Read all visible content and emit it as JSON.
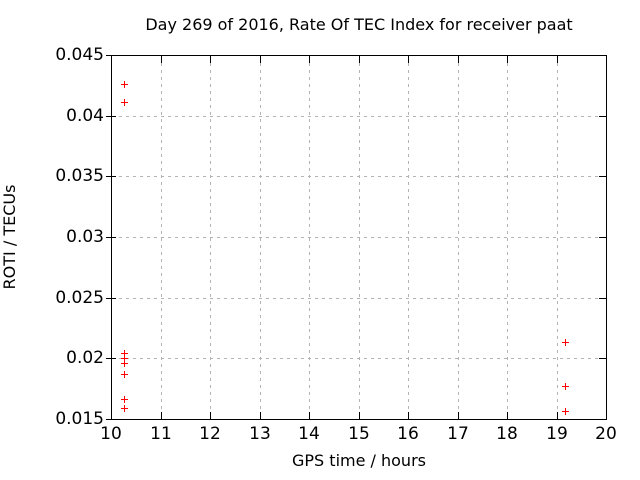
{
  "title": "Day 269 of 2016, Rate Of TEC Index for receiver paat",
  "colors": {
    "marker": "#ff0000",
    "grid": "#b3b3b3",
    "axis": "#000000",
    "text": "#000000",
    "background": "#ffffff"
  },
  "chart_data": {
    "type": "scatter",
    "title": "Day 269 of 2016, Rate Of TEC Index for receiver paat",
    "xlabel": "GPS time / hours",
    "ylabel": "ROTI / TECUs",
    "xlim": [
      10,
      20
    ],
    "ylim": [
      0.015,
      0.045
    ],
    "grid": true,
    "legend": false,
    "marker": "plus",
    "x_ticks": {
      "values": [
        10,
        11,
        12,
        13,
        14,
        15,
        16,
        17,
        18,
        19,
        20
      ],
      "labels": [
        "10",
        "11",
        "12",
        "13",
        "14",
        "15",
        "16",
        "17",
        "18",
        "19",
        "20"
      ]
    },
    "y_ticks": {
      "values": [
        0.015,
        0.02,
        0.025,
        0.03,
        0.035,
        0.04,
        0.045
      ],
      "labels": [
        "0.015",
        "0.02",
        "0.025",
        "0.03",
        "0.035",
        "0.04",
        "0.045"
      ]
    },
    "series": [
      {
        "name": "ROTI",
        "points": [
          [
            10.27,
            0.0426
          ],
          [
            10.27,
            0.0411
          ],
          [
            10.27,
            0.0204
          ],
          [
            10.27,
            0.02
          ],
          [
            10.27,
            0.0196
          ],
          [
            10.27,
            0.0187
          ],
          [
            10.27,
            0.0166
          ],
          [
            10.27,
            0.0159
          ],
          [
            19.19,
            0.0213
          ],
          [
            19.19,
            0.0177
          ],
          [
            19.19,
            0.0156
          ]
        ]
      }
    ]
  }
}
